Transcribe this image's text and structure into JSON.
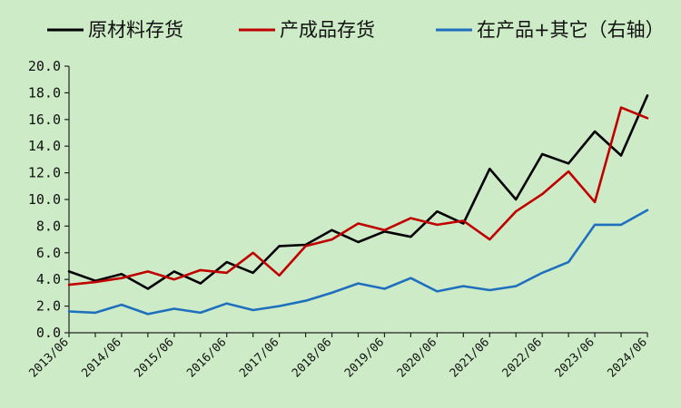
{
  "chart_data": {
    "type": "line",
    "title": "",
    "xlabel": "",
    "ylabel": "",
    "ylim": [
      0,
      20
    ],
    "y_ticks": [
      "0.0",
      "2.0",
      "4.0",
      "6.0",
      "8.0",
      "10.0",
      "12.0",
      "14.0",
      "16.0",
      "18.0",
      "20.0"
    ],
    "x_tick_labels": [
      "2013/06",
      "2014/06",
      "2015/06",
      "2016/06",
      "2017/06",
      "2018/06",
      "2019/06",
      "2020/06",
      "2021/06",
      "2022/06",
      "2023/06",
      "2024/06"
    ],
    "grid": false,
    "legend_position": "top",
    "series": [
      {
        "name": "原材料存货",
        "color": "#000000",
        "values": [
          4.6,
          3.9,
          4.4,
          3.3,
          4.6,
          3.7,
          5.3,
          4.5,
          6.5,
          6.6,
          7.7,
          6.8,
          7.6,
          7.2,
          9.1,
          8.2,
          12.3,
          10.0,
          13.4,
          12.7,
          15.1,
          13.3,
          17.8
        ]
      },
      {
        "name": "产成品存货",
        "color": "#c00000",
        "values": [
          3.6,
          3.8,
          4.1,
          4.6,
          4.0,
          4.7,
          4.5,
          6.0,
          4.3,
          6.5,
          7.0,
          8.2,
          7.7,
          8.6,
          8.1,
          8.4,
          7.0,
          9.1,
          10.4,
          12.1,
          9.8,
          16.9,
          16.1
        ]
      },
      {
        "name": "在产品+其它（右轴）",
        "color": "#1f6fbf",
        "values": [
          1.6,
          1.5,
          2.1,
          1.4,
          1.8,
          1.5,
          2.2,
          1.7,
          2.0,
          2.4,
          3.0,
          3.7,
          3.3,
          4.1,
          3.1,
          3.5,
          3.2,
          3.5,
          4.5,
          5.3,
          8.1,
          8.1,
          9.2
        ]
      }
    ]
  }
}
